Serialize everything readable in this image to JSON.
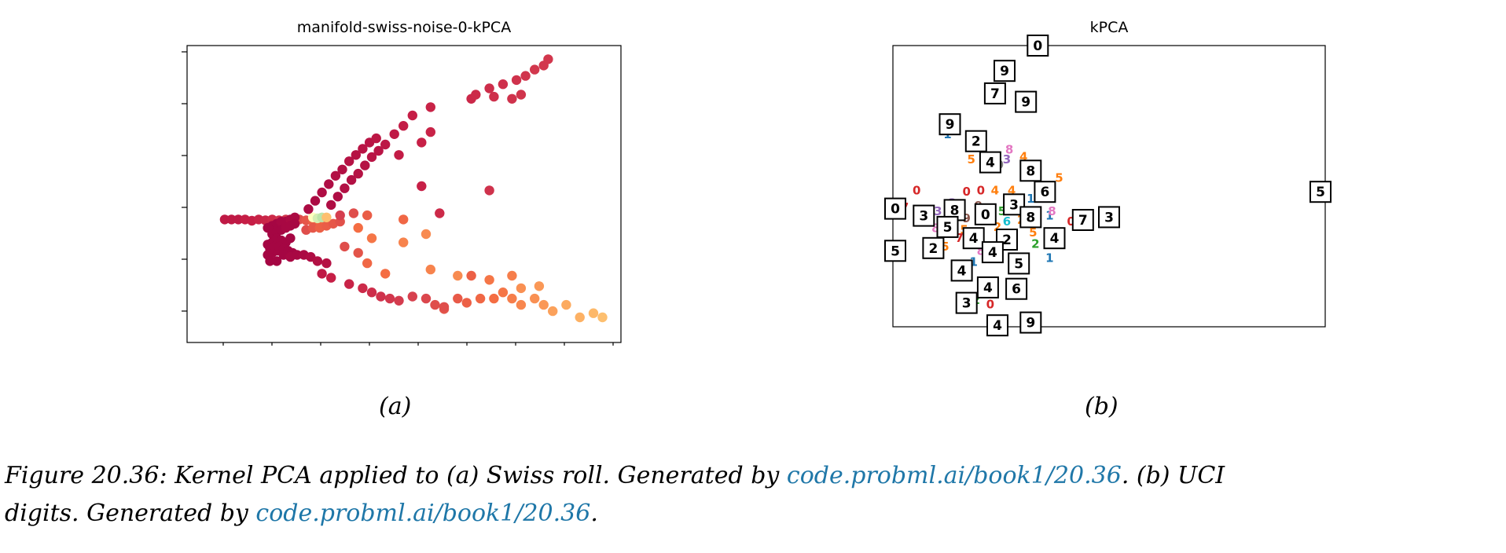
{
  "figure": {
    "panel_a": {
      "title": "manifold-swiss-noise-0-kPCA",
      "sublabel": "(a)"
    },
    "panel_b": {
      "title": "kPCA",
      "sublabel": "(b)"
    },
    "caption": {
      "line1_text1": "Figure 20.36: Kernel PCA applied to (a) Swiss roll.  Generated by ",
      "line1_link": "code.probml.ai/book1/20.36",
      "line1_text2": ".  (b) UCI",
      "line2_text1": "digits.  Generated by ",
      "line2_link": "code.probml.ai/book1/20.36",
      "line2_text2": "."
    }
  },
  "chart_data": [
    {
      "type": "scatter",
      "title": "manifold-swiss-noise-0-kPCA",
      "xlabel": "",
      "ylabel": "",
      "xlim": [
        0,
        9
      ],
      "ylim": [
        0,
        6
      ],
      "grid": false,
      "tick_labels_shown": false,
      "colormap": "Spectral",
      "points": [
        [
          0.45,
          2.35,
          0.1
        ],
        [
          0.6,
          2.35,
          0.1
        ],
        [
          0.75,
          2.35,
          0.1
        ],
        [
          0.9,
          2.35,
          0.12
        ],
        [
          1.05,
          2.32,
          0.12
        ],
        [
          1.2,
          2.35,
          0.14
        ],
        [
          1.35,
          2.33,
          0.15
        ],
        [
          1.5,
          2.35,
          0.17
        ],
        [
          1.65,
          2.33,
          0.2
        ],
        [
          1.8,
          2.35,
          0.22
        ],
        [
          1.95,
          2.33,
          0.25
        ],
        [
          2.1,
          2.35,
          0.3
        ],
        [
          2.25,
          2.33,
          0.33
        ],
        [
          2.4,
          2.3,
          0.36
        ],
        [
          2.55,
          2.32,
          0.4
        ],
        [
          2.25,
          2.1,
          0.3
        ],
        [
          2.4,
          2.15,
          0.33
        ],
        [
          2.55,
          2.15,
          0.36
        ],
        [
          2.7,
          2.2,
          0.35
        ],
        [
          2.85,
          2.25,
          0.33
        ],
        [
          3.0,
          2.3,
          0.31
        ],
        [
          2.4,
          2.4,
          0.8
        ],
        [
          2.5,
          2.38,
          0.85
        ],
        [
          2.6,
          2.4,
          0.88
        ],
        [
          2.7,
          2.4,
          0.6
        ],
        [
          1.4,
          2.15,
          0.02
        ],
        [
          1.5,
          2.2,
          0.02
        ],
        [
          1.6,
          2.25,
          0.02
        ],
        [
          1.7,
          2.3,
          0.03
        ],
        [
          1.8,
          2.3,
          0.03
        ],
        [
          1.9,
          2.35,
          0.04
        ],
        [
          2.0,
          2.4,
          0.04
        ],
        [
          1.5,
          2.0,
          0.02
        ],
        [
          1.6,
          2.05,
          0.02
        ],
        [
          1.7,
          2.1,
          0.02
        ],
        [
          1.8,
          2.15,
          0.03
        ],
        [
          1.9,
          2.2,
          0.03
        ],
        [
          2.0,
          2.25,
          0.03
        ],
        [
          1.4,
          1.75,
          0.02
        ],
        [
          1.5,
          1.8,
          0.02
        ],
        [
          1.6,
          1.9,
          0.02
        ],
        [
          1.7,
          1.85,
          0.02
        ],
        [
          1.8,
          1.8,
          0.02
        ],
        [
          1.9,
          1.9,
          0.02
        ],
        [
          1.4,
          1.5,
          0.02
        ],
        [
          1.5,
          1.55,
          0.02
        ],
        [
          1.6,
          1.6,
          0.02
        ],
        [
          1.45,
          1.65,
          0.02
        ],
        [
          1.55,
          1.7,
          0.02
        ],
        [
          1.65,
          1.7,
          0.02
        ],
        [
          1.75,
          1.65,
          0.02
        ],
        [
          1.85,
          1.6,
          0.02
        ],
        [
          1.95,
          1.55,
          0.02
        ],
        [
          1.45,
          1.35,
          0.02
        ],
        [
          1.6,
          1.35,
          0.02
        ],
        [
          1.75,
          1.5,
          0.02
        ],
        [
          1.9,
          1.45,
          0.03
        ],
        [
          2.05,
          1.5,
          0.03
        ],
        [
          2.2,
          1.5,
          0.04
        ],
        [
          2.35,
          1.45,
          0.05
        ],
        [
          2.5,
          1.35,
          0.06
        ],
        [
          2.7,
          1.3,
          0.07
        ],
        [
          2.3,
          2.6,
          0.04
        ],
        [
          2.45,
          2.8,
          0.04
        ],
        [
          2.6,
          3.0,
          0.05
        ],
        [
          2.75,
          3.2,
          0.05
        ],
        [
          2.9,
          3.4,
          0.06
        ],
        [
          3.05,
          3.55,
          0.06
        ],
        [
          3.2,
          3.75,
          0.07
        ],
        [
          3.35,
          3.9,
          0.07
        ],
        [
          3.5,
          4.05,
          0.08
        ],
        [
          3.65,
          4.2,
          0.08
        ],
        [
          3.8,
          4.3,
          0.09
        ],
        [
          2.8,
          2.7,
          0.05
        ],
        [
          2.95,
          2.9,
          0.05
        ],
        [
          3.1,
          3.1,
          0.06
        ],
        [
          3.25,
          3.3,
          0.06
        ],
        [
          3.4,
          3.45,
          0.07
        ],
        [
          3.55,
          3.65,
          0.07
        ],
        [
          3.7,
          3.85,
          0.08
        ],
        [
          3.85,
          4.0,
          0.08
        ],
        [
          4.0,
          4.15,
          0.09
        ],
        [
          4.2,
          4.4,
          0.1
        ],
        [
          4.4,
          4.6,
          0.11
        ],
        [
          4.6,
          4.85,
          0.12
        ],
        [
          5.0,
          5.05,
          0.14
        ],
        [
          5.9,
          5.25,
          0.16
        ],
        [
          6.0,
          5.35,
          0.17
        ],
        [
          6.3,
          5.5,
          0.18
        ],
        [
          6.6,
          5.6,
          0.19
        ],
        [
          6.9,
          5.7,
          0.2
        ],
        [
          7.1,
          5.8,
          0.21
        ],
        [
          7.3,
          5.95,
          0.22
        ],
        [
          7.5,
          6.05,
          0.22
        ],
        [
          7.6,
          6.2,
          0.22
        ],
        [
          6.4,
          5.3,
          0.19
        ],
        [
          6.8,
          5.25,
          0.2
        ],
        [
          7.0,
          5.35,
          0.21
        ],
        [
          5.0,
          4.45,
          0.14
        ],
        [
          4.8,
          4.2,
          0.13
        ],
        [
          4.3,
          3.9,
          0.11
        ],
        [
          4.8,
          3.15,
          0.13
        ],
        [
          6.3,
          3.05,
          0.2
        ],
        [
          5.2,
          2.5,
          0.17
        ],
        [
          3.0,
          2.45,
          0.25
        ],
        [
          3.3,
          2.5,
          0.3
        ],
        [
          3.6,
          2.45,
          0.35
        ],
        [
          4.4,
          2.35,
          0.38
        ],
        [
          3.4,
          2.15,
          0.4
        ],
        [
          3.7,
          1.9,
          0.42
        ],
        [
          3.1,
          1.7,
          0.3
        ],
        [
          3.4,
          1.55,
          0.32
        ],
        [
          4.4,
          1.8,
          0.45
        ],
        [
          4.9,
          2.0,
          0.47
        ],
        [
          5.0,
          1.15,
          0.45
        ],
        [
          5.6,
          1.0,
          0.47
        ],
        [
          3.6,
          1.3,
          0.38
        ],
        [
          4.0,
          1.05,
          0.4
        ],
        [
          2.6,
          1.05,
          0.1
        ],
        [
          2.8,
          0.95,
          0.12
        ],
        [
          3.2,
          0.8,
          0.14
        ],
        [
          3.5,
          0.7,
          0.17
        ],
        [
          3.7,
          0.6,
          0.18
        ],
        [
          3.9,
          0.5,
          0.2
        ],
        [
          4.1,
          0.45,
          0.22
        ],
        [
          4.3,
          0.4,
          0.24
        ],
        [
          4.6,
          0.5,
          0.26
        ],
        [
          4.9,
          0.45,
          0.28
        ],
        [
          5.1,
          0.3,
          0.3
        ],
        [
          5.3,
          0.2,
          0.32
        ],
        [
          5.6,
          0.45,
          0.34
        ],
        [
          5.8,
          0.35,
          0.36
        ],
        [
          6.1,
          0.45,
          0.38
        ],
        [
          6.4,
          0.45,
          0.4
        ],
        [
          6.6,
          0.6,
          0.42
        ],
        [
          6.8,
          0.45,
          0.44
        ],
        [
          7.0,
          0.3,
          0.46
        ],
        [
          7.3,
          0.45,
          0.48
        ],
        [
          7.5,
          0.3,
          0.5
        ],
        [
          7.7,
          0.15,
          0.52
        ],
        [
          8.0,
          0.3,
          0.54
        ],
        [
          8.3,
          0.0,
          0.56
        ],
        [
          8.6,
          0.1,
          0.58
        ],
        [
          8.8,
          0.0,
          0.6
        ],
        [
          5.9,
          1.0,
          0.36
        ],
        [
          6.3,
          0.9,
          0.42
        ],
        [
          6.8,
          1.0,
          0.44
        ],
        [
          7.0,
          0.7,
          0.48
        ],
        [
          7.4,
          0.75,
          0.5
        ],
        [
          5.3,
          0.25,
          0.3
        ]
      ]
    },
    {
      "type": "scatter",
      "title": "kPCA",
      "xlabel": "",
      "ylabel": "",
      "xlim": [
        -3,
        6
      ],
      "ylim": [
        -4,
        6
      ],
      "grid": false,
      "tick_labels_shown": false,
      "boxed_digits": [
        {
          "label": "0",
          "x": 0.0,
          "y": 6.0
        },
        {
          "label": "9",
          "x": -0.7,
          "y": 5.1
        },
        {
          "label": "7",
          "x": -0.9,
          "y": 4.3
        },
        {
          "label": "9",
          "x": -0.25,
          "y": 4.0
        },
        {
          "label": "9",
          "x": -1.85,
          "y": 3.2
        },
        {
          "label": "2",
          "x": -1.3,
          "y": 2.6
        },
        {
          "label": "4",
          "x": -1.0,
          "y": 1.85
        },
        {
          "label": "8",
          "x": -0.15,
          "y": 1.55
        },
        {
          "label": "6",
          "x": 0.15,
          "y": 0.8
        },
        {
          "label": "5",
          "x": 5.95,
          "y": 0.8
        },
        {
          "label": "0",
          "x": -3.0,
          "y": 0.2
        },
        {
          "label": "3",
          "x": -2.4,
          "y": -0.05
        },
        {
          "label": "8",
          "x": -1.75,
          "y": 0.15
        },
        {
          "label": "0",
          "x": -1.1,
          "y": 0.0
        },
        {
          "label": "3",
          "x": -0.5,
          "y": 0.35
        },
        {
          "label": "8",
          "x": -0.15,
          "y": -0.1
        },
        {
          "label": "7",
          "x": 0.95,
          "y": -0.2
        },
        {
          "label": "3",
          "x": 1.5,
          "y": -0.1
        },
        {
          "label": "5",
          "x": -1.9,
          "y": -0.45
        },
        {
          "label": "4",
          "x": -1.35,
          "y": -0.85
        },
        {
          "label": "2",
          "x": -0.65,
          "y": -0.9
        },
        {
          "label": "4",
          "x": 0.35,
          "y": -0.85
        },
        {
          "label": "5",
          "x": -3.0,
          "y": -1.3
        },
        {
          "label": "2",
          "x": -2.2,
          "y": -1.2
        },
        {
          "label": "4",
          "x": -0.95,
          "y": -1.35
        },
        {
          "label": "5",
          "x": -0.4,
          "y": -1.75
        },
        {
          "label": "4",
          "x": -1.6,
          "y": -2.0
        },
        {
          "label": "4",
          "x": -1.05,
          "y": -2.6
        },
        {
          "label": "6",
          "x": -0.45,
          "y": -2.65
        },
        {
          "label": "3",
          "x": -1.5,
          "y": -3.15
        },
        {
          "label": "4",
          "x": -0.85,
          "y": -3.95
        },
        {
          "label": "9",
          "x": -0.15,
          "y": -3.85
        }
      ],
      "digit_labels": [
        {
          "label": "1",
          "x": -1.9,
          "y": 2.85,
          "color": "#1f77b4"
        },
        {
          "label": "8",
          "x": -0.6,
          "y": 2.3,
          "color": "#e377c2"
        },
        {
          "label": "5",
          "x": -1.4,
          "y": 1.95,
          "color": "#ff7f0e"
        },
        {
          "label": "3",
          "x": -0.65,
          "y": 1.95,
          "color": "#9467bd"
        },
        {
          "label": "9",
          "x": -0.8,
          "y": 1.75,
          "color": "#7f7f7f"
        },
        {
          "label": "4",
          "x": -0.3,
          "y": 2.05,
          "color": "#ff7f0e"
        },
        {
          "label": "5",
          "x": 0.45,
          "y": 1.3,
          "color": "#ff7f0e"
        },
        {
          "label": "0",
          "x": -2.55,
          "y": 0.85,
          "color": "#d62728"
        },
        {
          "label": "0",
          "x": -1.5,
          "y": 0.8,
          "color": "#d62728"
        },
        {
          "label": "0",
          "x": -1.2,
          "y": 0.85,
          "color": "#d62728"
        },
        {
          "label": "4",
          "x": -0.9,
          "y": 0.85,
          "color": "#ff7f0e"
        },
        {
          "label": "4",
          "x": -0.55,
          "y": 0.85,
          "color": "#ff7f0e"
        },
        {
          "label": "3",
          "x": -1.8,
          "y": 0.4,
          "color": "#9467bd"
        },
        {
          "label": "7",
          "x": -2.8,
          "y": 0.25,
          "color": "#d62728"
        },
        {
          "label": "3",
          "x": -2.1,
          "y": 0.1,
          "color": "#9467bd"
        },
        {
          "label": "9",
          "x": -1.25,
          "y": 0.3,
          "color": "#8c564b"
        },
        {
          "label": "5",
          "x": -0.75,
          "y": 0.1,
          "color": "#2ca02c"
        },
        {
          "label": "2",
          "x": -0.35,
          "y": -0.2,
          "color": "#ff7f0e"
        },
        {
          "label": "1",
          "x": 0.25,
          "y": -0.05,
          "color": "#1f77b4"
        },
        {
          "label": "8",
          "x": 0.3,
          "y": 0.1,
          "color": "#e377c2"
        },
        {
          "label": "0",
          "x": 0.7,
          "y": -0.25,
          "color": "#d62728"
        },
        {
          "label": "8",
          "x": -2.15,
          "y": -0.5,
          "color": "#e377c2"
        },
        {
          "label": "5",
          "x": -1.55,
          "y": -0.55,
          "color": "#ff7f0e"
        },
        {
          "label": "7",
          "x": -1.65,
          "y": -0.85,
          "color": "#d62728"
        },
        {
          "label": "5",
          "x": -0.1,
          "y": -0.65,
          "color": "#ff7f0e"
        },
        {
          "label": "2",
          "x": -0.05,
          "y": -1.05,
          "color": "#2ca02c"
        },
        {
          "label": "5",
          "x": -1.95,
          "y": -1.15,
          "color": "#ff7f0e"
        },
        {
          "label": "8",
          "x": -1.2,
          "y": -1.3,
          "color": "#e377c2"
        },
        {
          "label": "1",
          "x": -1.35,
          "y": -1.7,
          "color": "#1f77b4"
        },
        {
          "label": "1",
          "x": 0.25,
          "y": -1.55,
          "color": "#1f77b4"
        },
        {
          "label": "2",
          "x": -1.3,
          "y": -3.05,
          "color": "#2ca02c"
        },
        {
          "label": "0",
          "x": -1.0,
          "y": -3.2,
          "color": "#d62728"
        },
        {
          "label": "3",
          "x": -0.95,
          "y": 0.15,
          "color": "#ff7f0e"
        },
        {
          "label": "6",
          "x": -0.65,
          "y": -0.25,
          "color": "#17becf"
        },
        {
          "label": "7",
          "x": -0.45,
          "y": 0.45,
          "color": "#bcbd22"
        },
        {
          "label": "1",
          "x": -0.15,
          "y": 0.55,
          "color": "#1f77b4"
        },
        {
          "label": "9",
          "x": -1.5,
          "y": -0.15,
          "color": "#8c564b"
        },
        {
          "label": "2",
          "x": -0.85,
          "y": -0.45,
          "color": "#ff7f0e"
        }
      ]
    }
  ]
}
